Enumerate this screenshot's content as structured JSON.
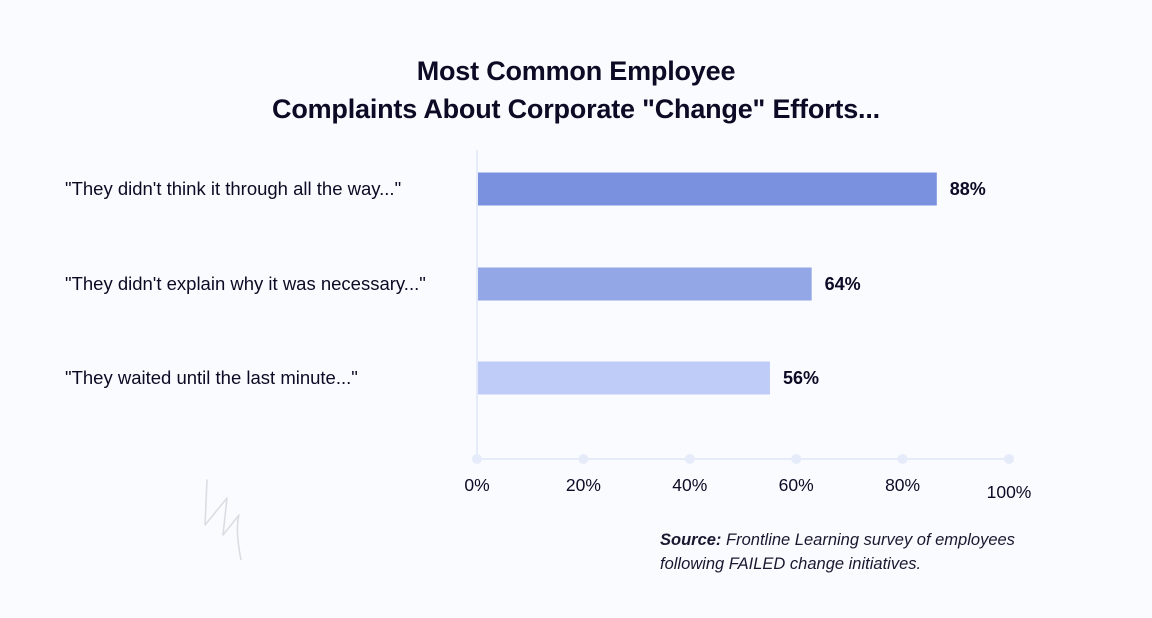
{
  "chart_data": {
    "type": "bar",
    "orientation": "horizontal",
    "title_lines": [
      "Most Common Employee",
      "Complaints About Corporate \"Change\" Efforts..."
    ],
    "categories": [
      "\"They didn't think it through all the way...\"",
      "\"They didn't explain why it was necessary...\"",
      "\"They waited until the last minute...\""
    ],
    "values": [
      88,
      64,
      56
    ],
    "value_labels": [
      "88%",
      "64%",
      "56%"
    ],
    "bar_colors": [
      "#7a91df",
      "#93a6e6",
      "#c0ccf8"
    ],
    "xlim": [
      0,
      100
    ],
    "xticks": [
      0,
      20,
      40,
      60,
      80,
      100
    ],
    "xtick_labels": [
      "0%",
      "20%",
      "40%",
      "60%",
      "80%",
      "100%"
    ],
    "xlabel": "",
    "ylabel": "",
    "grid": false,
    "legend": "none"
  },
  "source": {
    "label": "Source:",
    "text": " Frontline Learning survey of employees following FAILED change initiatives."
  },
  "colors": {
    "background": "#fafbff",
    "text": "#0c0a24",
    "axis": "#e6ebfa"
  }
}
